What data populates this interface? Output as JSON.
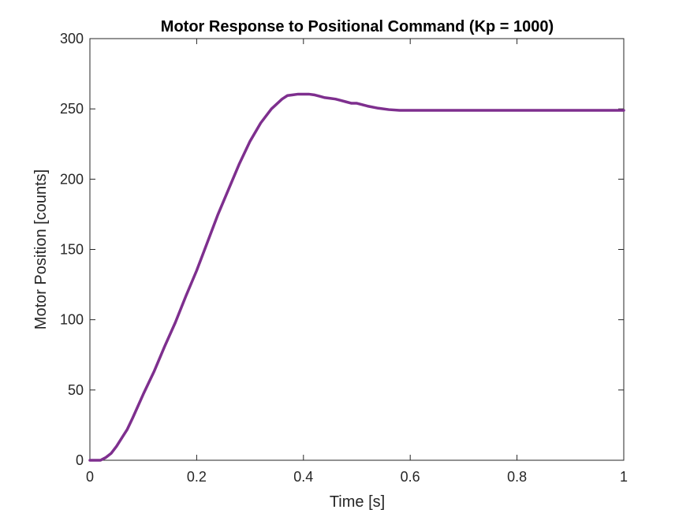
{
  "chart_data": {
    "type": "line",
    "title": "Motor Response to Positional Command (Kp = 1000)",
    "xlabel": "Time [s]",
    "ylabel": "Motor Position [counts]",
    "xlim": [
      0,
      1
    ],
    "ylim": [
      0,
      300
    ],
    "xticks": [
      0,
      0.2,
      0.4,
      0.6,
      0.8,
      1
    ],
    "xtick_labels": [
      "0",
      "0.2",
      "0.4",
      "0.6",
      "0.8",
      "1"
    ],
    "yticks": [
      0,
      50,
      100,
      150,
      200,
      250,
      300
    ],
    "ytick_labels": [
      "0",
      "50",
      "100",
      "150",
      "200",
      "250",
      "300"
    ],
    "grid": false,
    "legend": "none",
    "series": [
      {
        "color": "#7E2F8E",
        "x": [
          0,
          0.02,
          0.03,
          0.04,
          0.05,
          0.06,
          0.07,
          0.08,
          0.1,
          0.12,
          0.14,
          0.16,
          0.18,
          0.2,
          0.22,
          0.24,
          0.26,
          0.28,
          0.3,
          0.32,
          0.34,
          0.36,
          0.37,
          0.38,
          0.39,
          0.4,
          0.41,
          0.42,
          0.43,
          0.44,
          0.45,
          0.46,
          0.47,
          0.48,
          0.49,
          0.5,
          0.52,
          0.54,
          0.56,
          0.58,
          0.6,
          0.8,
          1.0
        ],
        "y": [
          0,
          0,
          2,
          5,
          10,
          16,
          22,
          30,
          47,
          63,
          81,
          98,
          117,
          135,
          155,
          175,
          193,
          211,
          227,
          240,
          250,
          257,
          259.5,
          260,
          260.5,
          260.5,
          260.5,
          260,
          259,
          258,
          257.5,
          257,
          256,
          255,
          254,
          254,
          252,
          250.5,
          249.5,
          249,
          249,
          249,
          249
        ]
      }
    ]
  }
}
